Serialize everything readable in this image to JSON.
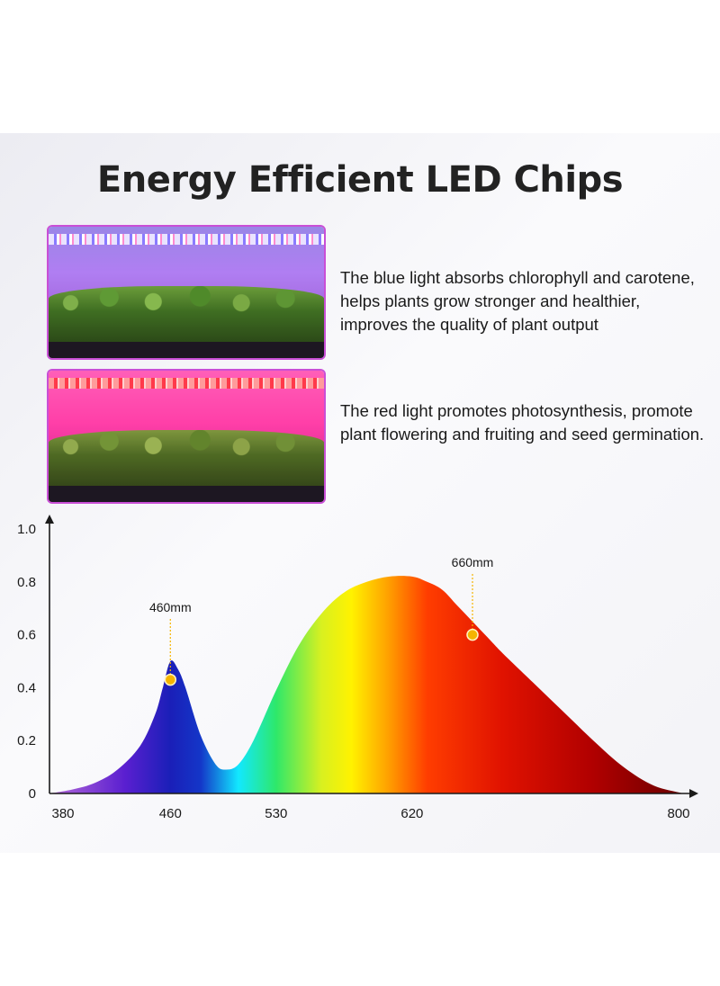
{
  "title": "Energy Efficient LED Chips",
  "sections": [
    {
      "text": "The blue light absorbs chlorophyll and carotene, helps plants grow stronger and healthier, improves the quality of plant output"
    },
    {
      "text": "The red light promotes photosynthesis, promote plant flowering and fruiting and seed germination."
    }
  ],
  "chart_data": {
    "type": "area",
    "x_ticks": [
      "380",
      "460",
      "530",
      "620",
      "800"
    ],
    "y_ticks": [
      "0",
      "0.2",
      "0.4",
      "0.6",
      "0.8",
      "1.0"
    ],
    "xlim": [
      380,
      800
    ],
    "ylim": [
      0,
      1.0
    ],
    "x": [
      380,
      395,
      410,
      425,
      440,
      450,
      455,
      460,
      465,
      470,
      480,
      490,
      497,
      505,
      515,
      530,
      545,
      560,
      575,
      590,
      605,
      620,
      630,
      640,
      650,
      660,
      670,
      680,
      700,
      720,
      740,
      760,
      780,
      800
    ],
    "y": [
      0.0,
      0.015,
      0.04,
      0.09,
      0.18,
      0.3,
      0.4,
      0.5,
      0.47,
      0.4,
      0.22,
      0.11,
      0.09,
      0.11,
      0.2,
      0.39,
      0.56,
      0.68,
      0.76,
      0.8,
      0.82,
      0.82,
      0.8,
      0.77,
      0.71,
      0.65,
      0.59,
      0.53,
      0.42,
      0.31,
      0.2,
      0.1,
      0.03,
      0.0
    ],
    "annotations": [
      {
        "label": "460mm",
        "x": 460,
        "y": 0.43
      },
      {
        "label": "660mm",
        "x": 660,
        "y": 0.6
      }
    ],
    "gradient_stops": [
      {
        "wavelength": 380,
        "color": "#b56ad8"
      },
      {
        "wavelength": 430,
        "color": "#5a1fd0"
      },
      {
        "wavelength": 460,
        "color": "#1a1fb8"
      },
      {
        "wavelength": 480,
        "color": "#1436c8"
      },
      {
        "wavelength": 505,
        "color": "#12e8ff"
      },
      {
        "wavelength": 530,
        "color": "#2ee86a"
      },
      {
        "wavelength": 560,
        "color": "#d8f020"
      },
      {
        "wavelength": 580,
        "color": "#fff200"
      },
      {
        "wavelength": 605,
        "color": "#ff9d00"
      },
      {
        "wavelength": 630,
        "color": "#ff3d00"
      },
      {
        "wavelength": 680,
        "color": "#e01200"
      },
      {
        "wavelength": 740,
        "color": "#b00000"
      },
      {
        "wavelength": 800,
        "color": "#6a0000"
      }
    ]
  },
  "colors": {
    "axis": "#1a1a1a",
    "marker": "#f5b400",
    "frame": "#c94fd6"
  }
}
